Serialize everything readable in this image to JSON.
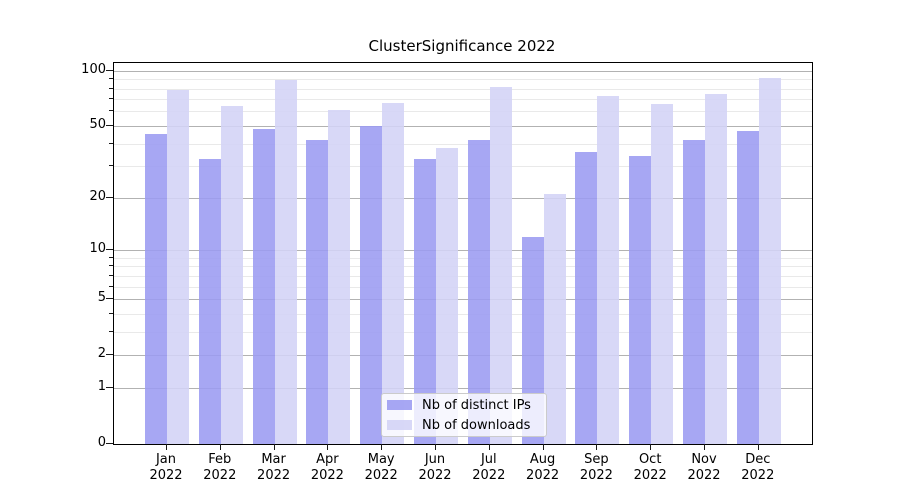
{
  "chart_data": {
    "type": "bar",
    "title": "ClusterSignificance 2022",
    "months": [
      "Jan",
      "Feb",
      "Mar",
      "Apr",
      "May",
      "Jun",
      "Jul",
      "Aug",
      "Sep",
      "Oct",
      "Nov",
      "Dec"
    ],
    "year_label": "2022",
    "categories": [
      "Jan 2022",
      "Feb 2022",
      "Mar 2022",
      "Apr 2022",
      "May 2022",
      "Jun 2022",
      "Jul 2022",
      "Aug 2022",
      "Sep 2022",
      "Oct 2022",
      "Nov 2022",
      "Dec 2022"
    ],
    "series": [
      {
        "name": "Nb of distinct IPs",
        "color": "#9b9bf1",
        "values": [
          45,
          33,
          48,
          42,
          50,
          33,
          42,
          12,
          36,
          34,
          42,
          47
        ]
      },
      {
        "name": "Nb of downloads",
        "color": "#d3d3f6",
        "values": [
          79,
          64,
          89,
          61,
          67,
          38,
          82,
          21,
          73,
          66,
          75,
          91
        ]
      }
    ],
    "yscale": "log1p",
    "ylim": [
      0,
      110
    ],
    "y_major_ticks": [
      100,
      50,
      20,
      10,
      5,
      2,
      1,
      0
    ],
    "y_minor_ticks": [
      3,
      4,
      6,
      7,
      8,
      9,
      30,
      40,
      60,
      70,
      80,
      90
    ],
    "grid": true,
    "legend_position": "lower center"
  },
  "colors": {
    "major_grid": "#b2b2b2",
    "minor_grid": "#e9e9e9",
    "axis": "#000000",
    "legend_border": "#cbcbcb",
    "legend_bg": "rgba(255,255,255,0.8)"
  }
}
